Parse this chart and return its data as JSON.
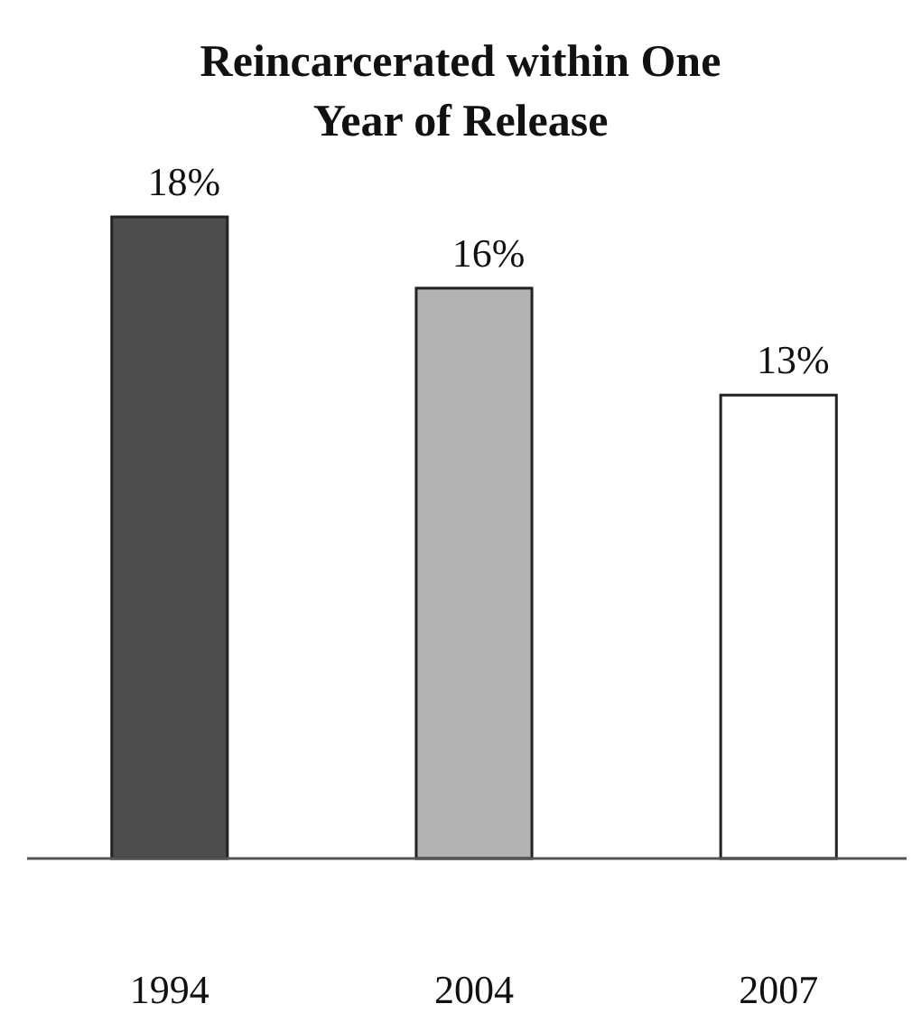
{
  "chart_data": {
    "type": "bar",
    "title": "Reincarcerated within One Year of Release",
    "categories": [
      "1994",
      "2004",
      "2007"
    ],
    "values": [
      18,
      16,
      13
    ],
    "colors": [
      "#4d4d4d",
      "#b3b3b3",
      "#ffffff"
    ],
    "value_labels": [
      "18%",
      "16%",
      "13%"
    ]
  }
}
